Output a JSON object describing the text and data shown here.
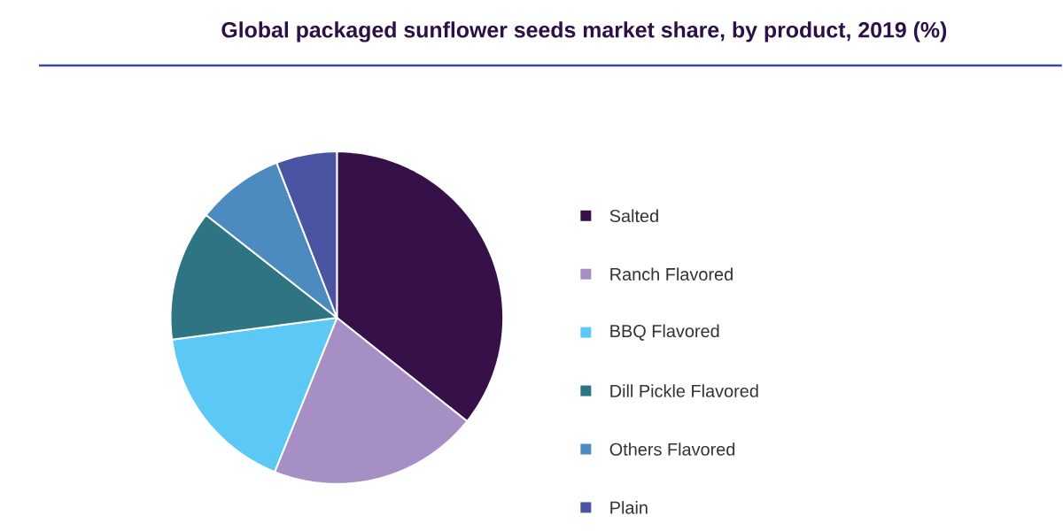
{
  "chart_data": {
    "type": "pie",
    "title": "Global packaged sunflower seeds market share, by product, 2019 (%)",
    "categories": [
      "Salted",
      "Ranch Flavored",
      "BBQ Flavored",
      "Dill Pickle Flavored",
      "Others Flavored",
      "Plain"
    ],
    "values": [
      35.7,
      20.4,
      16.8,
      12.7,
      8.5,
      5.9
    ],
    "colors": [
      "#361048",
      "#a58fc4",
      "#5bc8f5",
      "#2e7482",
      "#4b8bbf",
      "#4a54a3"
    ],
    "legend": "right"
  }
}
